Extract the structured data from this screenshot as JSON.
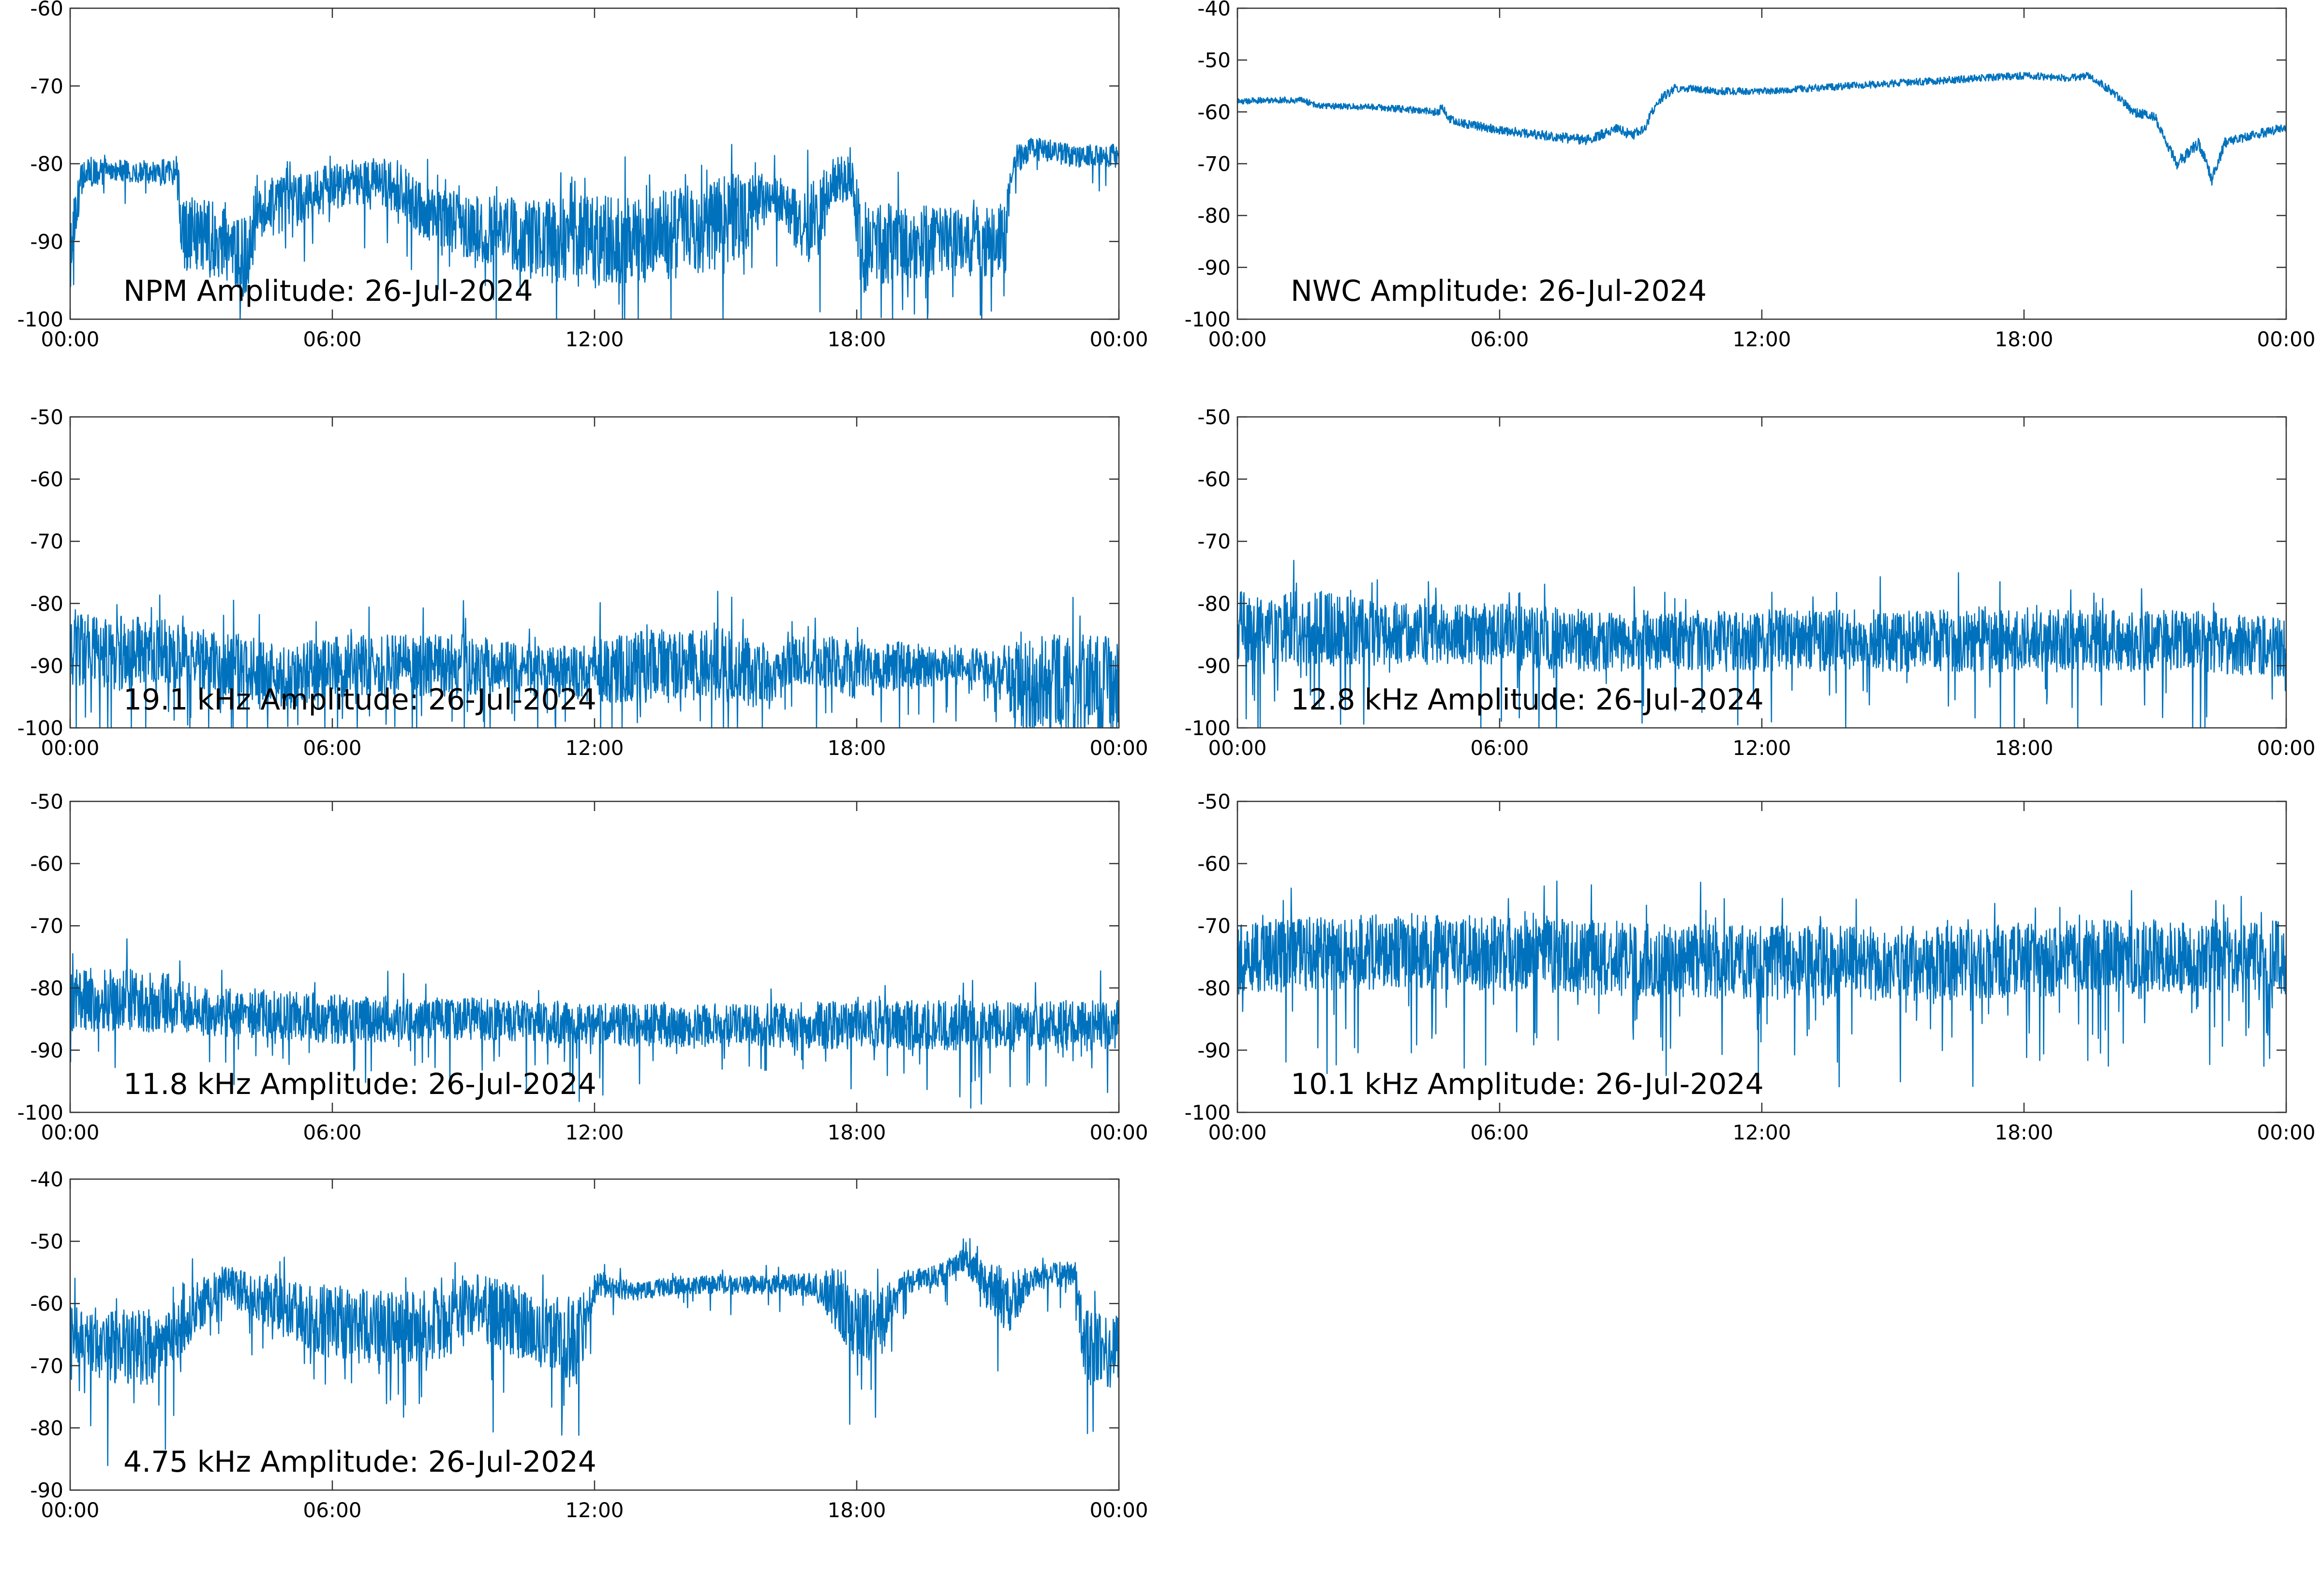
{
  "figure": {
    "background": "#ffffff",
    "trace_color": "#0072BD"
  },
  "chart_data": [
    {
      "type": "line",
      "title": "NPM Amplitude: 26-Jul-2024",
      "xlabel": "",
      "ylabel": "",
      "xlim": [
        0,
        24
      ],
      "ylim": [
        -100,
        -60
      ],
      "yticks": [
        -100,
        -90,
        -80,
        -70,
        -60
      ],
      "xticks": [
        "00:00",
        "06:00",
        "12:00",
        "18:00",
        "00:00"
      ],
      "grid": false,
      "series": [
        {
          "x": [
            0,
            0.1,
            0.3,
            1,
            2,
            2.45,
            2.55,
            3.5,
            4,
            4.3,
            5,
            6,
            7,
            7.5,
            8,
            9,
            10,
            11,
            12,
            13,
            14,
            15,
            15.5,
            16,
            16.3,
            16.6,
            16.9,
            17.5,
            17.9,
            18.1,
            19,
            20,
            21,
            21.4,
            21.55,
            22,
            23,
            24
          ],
          "y": [
            -93,
            -87,
            -81,
            -81,
            -81,
            -81,
            -89,
            -90,
            -92,
            -86,
            -85,
            -83,
            -82,
            -83,
            -86,
            -88,
            -89,
            -90,
            -90,
            -90,
            -89,
            -88,
            -86,
            -84,
            -85,
            -87,
            -88,
            -82,
            -82,
            -91,
            -90,
            -90,
            -90,
            -90,
            -80,
            -78,
            -79,
            -79
          ],
          "noise": [
            5,
            3,
            2,
            1.5,
            1.5,
            2,
            5,
            5,
            6,
            4,
            3.5,
            3,
            3,
            3.5,
            3.5,
            4,
            5,
            5.5,
            6,
            6,
            6,
            6.5,
            5,
            3,
            3,
            4,
            5,
            3,
            3,
            6,
            5,
            4.5,
            4.5,
            5,
            2,
            1.5,
            1.5,
            1.5
          ]
        }
      ]
    },
    {
      "type": "line",
      "title": "NWC Amplitude: 26-Jul-2024",
      "xlabel": "",
      "ylabel": "",
      "xlim": [
        0,
        24
      ],
      "ylim": [
        -100,
        -40
      ],
      "yticks": [
        -100,
        -90,
        -80,
        -70,
        -60,
        -50,
        -40
      ],
      "xticks": [
        "00:00",
        "06:00",
        "12:00",
        "18:00",
        "00:00"
      ],
      "grid": false,
      "series": [
        {
          "x": [
            0,
            0.5,
            1,
            1.5,
            1.8,
            2.5,
            3,
            4,
            4.6,
            4.7,
            4.8,
            5,
            6,
            7,
            8,
            8.3,
            8.7,
            9,
            9.3,
            9.6,
            10,
            10.4,
            11,
            12,
            13,
            14,
            15,
            16,
            17,
            18,
            19,
            19.5,
            20,
            20.5,
            21,
            21.5,
            22,
            22.3,
            22.6,
            23,
            24
          ],
          "y": [
            -58,
            -57.8,
            -57.7,
            -57.8,
            -58.7,
            -59,
            -59,
            -59.6,
            -60,
            -59,
            -61,
            -62,
            -63.5,
            -64.5,
            -65.5,
            -64.5,
            -63,
            -64.5,
            -63.5,
            -58,
            -55.5,
            -55.5,
            -56,
            -56,
            -55.5,
            -55,
            -54.5,
            -54,
            -53.5,
            -53,
            -53.5,
            -53,
            -56,
            -60,
            -61,
            -70,
            -66,
            -73,
            -66,
            -65,
            -63
          ],
          "noise": [
            0.6,
            0.6,
            0.6,
            0.6,
            0.6,
            0.6,
            0.6,
            0.7,
            0.8,
            0.8,
            0.8,
            0.8,
            0.9,
            0.9,
            1,
            1,
            1,
            1,
            1,
            0.9,
            0.8,
            0.7,
            0.7,
            0.7,
            0.7,
            0.7,
            0.7,
            0.7,
            0.7,
            0.7,
            0.7,
            0.7,
            0.8,
            0.9,
            0.9,
            1.2,
            1.2,
            1.2,
            1,
            0.9,
            0.9
          ]
        }
      ]
    },
    {
      "type": "line",
      "title": "19.1 kHz Amplitude: 26-Jul-2024",
      "xlabel": "",
      "ylabel": "",
      "xlim": [
        0,
        24
      ],
      "ylim": [
        -100,
        -50
      ],
      "yticks": [
        -100,
        -90,
        -80,
        -70,
        -60,
        -50
      ],
      "xticks": [
        "00:00",
        "06:00",
        "12:00",
        "18:00",
        "00:00"
      ],
      "grid": false,
      "series": [
        {
          "x": [
            0,
            1,
            2,
            3,
            4,
            5,
            6,
            7,
            8,
            9,
            10,
            11,
            12,
            13,
            14,
            15,
            16,
            16.5,
            17,
            18,
            19,
            20,
            21,
            21.5,
            22,
            23,
            24
          ],
          "y": [
            -87,
            -88,
            -88,
            -89,
            -91,
            -92,
            -90,
            -90,
            -90,
            -90,
            -90,
            -91,
            -91,
            -90,
            -90,
            -90,
            -92,
            -90,
            -89,
            -91,
            -90,
            -90,
            -90,
            -92,
            -93,
            -93,
            -93
          ],
          "noise": [
            6,
            6,
            6,
            5,
            6,
            5,
            5,
            5,
            5,
            5,
            4,
            4,
            5,
            6,
            6,
            6,
            5,
            4,
            4,
            5,
            4,
            3,
            3,
            6,
            8,
            8,
            8
          ]
        }
      ]
    },
    {
      "type": "line",
      "title": "12.8 kHz Amplitude: 26-Jul-2024",
      "xlabel": "",
      "ylabel": "",
      "xlim": [
        0,
        24
      ],
      "ylim": [
        -100,
        -50
      ],
      "yticks": [
        -100,
        -90,
        -80,
        -70,
        -60,
        -50
      ],
      "xticks": [
        "00:00",
        "06:00",
        "12:00",
        "18:00",
        "00:00"
      ],
      "grid": false,
      "series": [
        {
          "x": [
            0,
            1,
            2,
            3,
            4,
            6,
            8,
            10,
            12,
            14,
            16,
            18,
            20,
            22,
            24
          ],
          "y": [
            -84,
            -84,
            -84,
            -85,
            -85,
            -85,
            -86,
            -86,
            -86,
            -86,
            -86,
            -86,
            -86,
            -86,
            -87
          ],
          "noise": [
            6,
            6,
            6,
            5.5,
            5,
            5,
            5,
            5,
            5,
            5,
            5,
            5,
            5,
            5,
            5
          ]
        }
      ]
    },
    {
      "type": "line",
      "title": "11.8 kHz Amplitude: 26-Jul-2024",
      "xlabel": "",
      "ylabel": "",
      "xlim": [
        0,
        24
      ],
      "ylim": [
        -100,
        -50
      ],
      "yticks": [
        -100,
        -90,
        -80,
        -70,
        -60,
        -50
      ],
      "xticks": [
        "00:00",
        "06:00",
        "12:00",
        "18:00",
        "00:00"
      ],
      "grid": false,
      "series": [
        {
          "x": [
            0,
            1,
            2,
            3,
            4,
            6,
            8,
            10,
            12,
            14,
            16,
            18,
            20,
            22,
            24
          ],
          "y": [
            -82,
            -82,
            -82,
            -84,
            -84,
            -85,
            -85,
            -85,
            -86,
            -86,
            -86,
            -86,
            -86,
            -86,
            -86
          ],
          "noise": [
            5,
            5,
            5,
            4,
            4,
            4,
            3.5,
            3.5,
            3.5,
            3.5,
            3.5,
            4,
            4,
            4,
            4
          ]
        }
      ]
    },
    {
      "type": "line",
      "title": "10.1 kHz Amplitude: 26-Jul-2024",
      "xlabel": "",
      "ylabel": "",
      "xlim": [
        0,
        24
      ],
      "ylim": [
        -100,
        -50
      ],
      "yticks": [
        -100,
        -90,
        -80,
        -70,
        -60,
        -50
      ],
      "xticks": [
        "00:00",
        "06:00",
        "12:00",
        "18:00",
        "00:00"
      ],
      "grid": false,
      "series": [
        {
          "x": [
            0,
            4,
            8,
            12,
            16,
            20,
            24
          ],
          "y": [
            -75,
            -74,
            -75,
            -76,
            -76,
            -75,
            -75
          ],
          "noise": [
            6,
            6,
            6,
            6,
            6,
            6,
            6
          ]
        }
      ]
    },
    {
      "type": "line",
      "title": "4.75 kHz Amplitude: 26-Jul-2024",
      "xlabel": "",
      "ylabel": "",
      "xlim": [
        0,
        24
      ],
      "ylim": [
        -90,
        -40
      ],
      "yticks": [
        -90,
        -80,
        -70,
        -60,
        -50,
        -40
      ],
      "xticks": [
        "00:00",
        "06:00",
        "12:00",
        "18:00",
        "00:00"
      ],
      "grid": false,
      "series": [
        {
          "x": [
            0,
            1,
            2,
            2.5,
            3,
            3.5,
            4,
            5,
            6,
            7,
            8,
            8.8,
            9,
            10,
            11,
            11.5,
            11.8,
            12,
            13,
            14,
            15,
            16,
            17,
            17.5,
            18,
            18.5,
            19,
            20,
            20.5,
            21,
            21.5,
            22,
            23,
            23.2,
            24
          ],
          "y": [
            -65,
            -67,
            -67,
            -64,
            -60,
            -57,
            -58,
            -61,
            -63,
            -64,
            -64,
            -62,
            -60,
            -62,
            -65,
            -67,
            -63,
            -57,
            -58,
            -57,
            -57,
            -57,
            -57,
            -59,
            -63,
            -64,
            -57,
            -55,
            -53,
            -57,
            -60,
            -56,
            -55,
            -67,
            -68
          ],
          "noise": [
            5,
            6,
            6,
            5,
            4,
            3,
            3.5,
            5,
            6,
            6,
            6,
            6,
            5,
            6,
            6,
            8,
            5,
            2,
            1.5,
            1.5,
            1.5,
            1.5,
            2,
            5,
            6,
            6,
            2,
            2,
            2,
            4,
            5,
            2,
            2,
            6,
            6
          ]
        }
      ]
    }
  ]
}
